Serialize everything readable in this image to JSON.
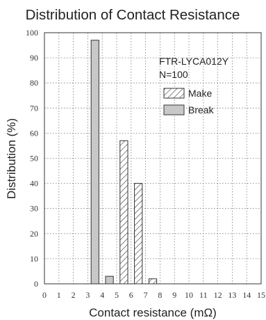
{
  "chart_data": {
    "type": "bar",
    "title": "Distribution of Contact Resistance",
    "xlabel": "Contact resistance (mΩ)",
    "ylabel": "Distribution (%)",
    "xlim": [
      0,
      15
    ],
    "ylim": [
      0,
      100
    ],
    "x_ticks": [
      "0",
      "1",
      "2",
      "3",
      "4",
      "5",
      "6",
      "7",
      "8",
      "9",
      "10",
      "11",
      "12",
      "13",
      "14",
      "15"
    ],
    "y_ticks": [
      "0",
      "10",
      "20",
      "30",
      "40",
      "50",
      "60",
      "70",
      "80",
      "90",
      "100"
    ],
    "grid": true,
    "annotations": [
      "FTR-LYCA012Y",
      "N=100"
    ],
    "legend_position": "top-right",
    "series": [
      {
        "name": "Make",
        "pattern": "hatched",
        "color": "#333333",
        "points": [
          {
            "x": 5.5,
            "y": 57
          },
          {
            "x": 6.5,
            "y": 40
          },
          {
            "x": 7.5,
            "y": 2
          }
        ]
      },
      {
        "name": "Break",
        "pattern": "solid",
        "color": "#c8c8c8",
        "points": [
          {
            "x": 3.5,
            "y": 97
          },
          {
            "x": 4.5,
            "y": 3
          }
        ]
      }
    ]
  }
}
